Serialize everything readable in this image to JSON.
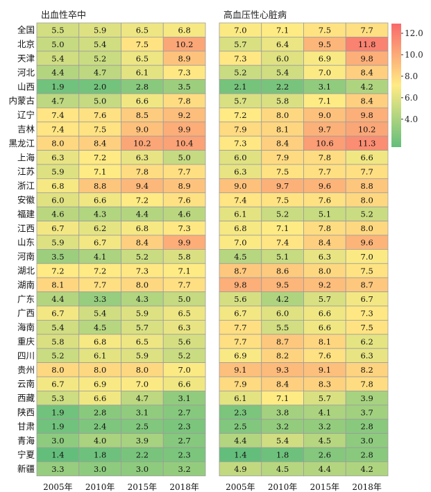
{
  "chart_data": {
    "type": "heatmap",
    "rows": [
      "全国",
      "北京",
      "天津",
      "河北",
      "山西",
      "内蒙古",
      "辽宁",
      "吉林",
      "黑龙江",
      "上海",
      "江苏",
      "浙江",
      "安徽",
      "福建",
      "江西",
      "山东",
      "河南",
      "湖北",
      "湖南",
      "广东",
      "广西",
      "海南",
      "重庆",
      "四川",
      "贵州",
      "云南",
      "西藏",
      "陕西",
      "甘肃",
      "青海",
      "宁夏",
      "新疆"
    ],
    "columns": [
      "2005年",
      "2010年",
      "2015年",
      "2018年"
    ],
    "panels": [
      {
        "title": "出血性卒中",
        "values": [
          [
            5.5,
            5.9,
            6.5,
            6.8
          ],
          [
            5.0,
            5.4,
            7.5,
            10.2
          ],
          [
            5.4,
            5.2,
            6.5,
            8.9
          ],
          [
            4.4,
            4.7,
            6.1,
            7.3
          ],
          [
            1.9,
            2.0,
            2.8,
            3.5
          ],
          [
            4.7,
            5.0,
            6.6,
            7.8
          ],
          [
            7.4,
            7.6,
            8.5,
            9.2
          ],
          [
            7.4,
            7.5,
            9.0,
            9.9
          ],
          [
            8.0,
            8.4,
            10.2,
            10.4
          ],
          [
            6.3,
            7.2,
            6.3,
            5.0
          ],
          [
            5.9,
            7.1,
            7.8,
            7.7
          ],
          [
            6.8,
            8.8,
            9.4,
            8.9
          ],
          [
            6.0,
            6.6,
            7.2,
            7.6
          ],
          [
            4.6,
            4.3,
            4.4,
            4.6
          ],
          [
            6.7,
            6.2,
            6.8,
            7.3
          ],
          [
            5.9,
            6.7,
            8.4,
            9.9
          ],
          [
            3.5,
            4.1,
            5.2,
            5.8
          ],
          [
            7.2,
            7.2,
            7.3,
            7.1
          ],
          [
            8.1,
            7.7,
            8.0,
            7.7
          ],
          [
            4.4,
            3.3,
            4.3,
            5.0
          ],
          [
            6.7,
            5.4,
            5.9,
            6.5
          ],
          [
            5.4,
            4.5,
            5.7,
            6.3
          ],
          [
            5.8,
            6.8,
            6.5,
            5.6
          ],
          [
            5.2,
            6.1,
            5.9,
            5.2
          ],
          [
            8.0,
            8.0,
            8.0,
            7.0
          ],
          [
            6.7,
            6.9,
            7.0,
            6.6
          ],
          [
            5.3,
            6.6,
            4.7,
            3.1
          ],
          [
            1.9,
            2.8,
            3.1,
            2.7
          ],
          [
            1.9,
            2.4,
            2.5,
            2.3
          ],
          [
            3.0,
            4.0,
            3.9,
            2.7
          ],
          [
            1.4,
            1.8,
            2.2,
            2.3
          ],
          [
            3.3,
            3.0,
            3.0,
            3.2
          ]
        ]
      },
      {
        "title": "高血压性心脏病",
        "values": [
          [
            7.0,
            7.1,
            7.5,
            7.7
          ],
          [
            5.7,
            6.4,
            9.5,
            11.8
          ],
          [
            7.3,
            6.0,
            6.9,
            9.8
          ],
          [
            5.2,
            5.4,
            7.0,
            8.4
          ],
          [
            2.1,
            2.2,
            3.1,
            4.2
          ],
          [
            5.7,
            5.8,
            7.1,
            8.4
          ],
          [
            7.2,
            8.0,
            9.0,
            9.8
          ],
          [
            7.9,
            8.1,
            9.7,
            10.2
          ],
          [
            7.3,
            8.4,
            10.6,
            11.3
          ],
          [
            6.0,
            7.9,
            7.8,
            6.6
          ],
          [
            6.3,
            7.5,
            7.7,
            7.7
          ],
          [
            9.0,
            9.7,
            9.6,
            8.8
          ],
          [
            7.4,
            7.5,
            7.6,
            8.0
          ],
          [
            6.1,
            5.2,
            5.1,
            5.2
          ],
          [
            6.8,
            7.1,
            7.8,
            8.0
          ],
          [
            7.0,
            7.4,
            8.4,
            9.6
          ],
          [
            4.5,
            5.1,
            6.3,
            7.0
          ],
          [
            8.7,
            8.6,
            8.0,
            7.5
          ],
          [
            9.8,
            9.5,
            9.2,
            8.7
          ],
          [
            5.6,
            4.2,
            5.7,
            6.7
          ],
          [
            6.7,
            6.0,
            6.6,
            7.3
          ],
          [
            7.7,
            5.5,
            6.6,
            7.5
          ],
          [
            7.7,
            8.7,
            8.1,
            6.2
          ],
          [
            6.9,
            8.2,
            7.6,
            6.3
          ],
          [
            9.1,
            9.3,
            9.1,
            8.2
          ],
          [
            7.9,
            8.4,
            8.3,
            7.8
          ],
          [
            6.1,
            7.1,
            5.7,
            3.9
          ],
          [
            2.3,
            3.8,
            4.1,
            3.7
          ],
          [
            2.5,
            3.2,
            3.2,
            2.8
          ],
          [
            4.4,
            5.4,
            4.5,
            3.0
          ],
          [
            1.4,
            1.8,
            2.6,
            2.8
          ],
          [
            4.9,
            4.5,
            4.4,
            4.2
          ]
        ]
      }
    ],
    "colorbar": {
      "range": [
        1.4,
        12.9
      ],
      "ticks": [
        4.0,
        6.0,
        8.0,
        10.0,
        12.0
      ],
      "tick_labels": [
        "4.0",
        "6.0",
        "8.0",
        "10.0",
        "12.0"
      ],
      "colors": [
        "#63be7b",
        "#ffeb84",
        "#f8696b"
      ]
    }
  }
}
